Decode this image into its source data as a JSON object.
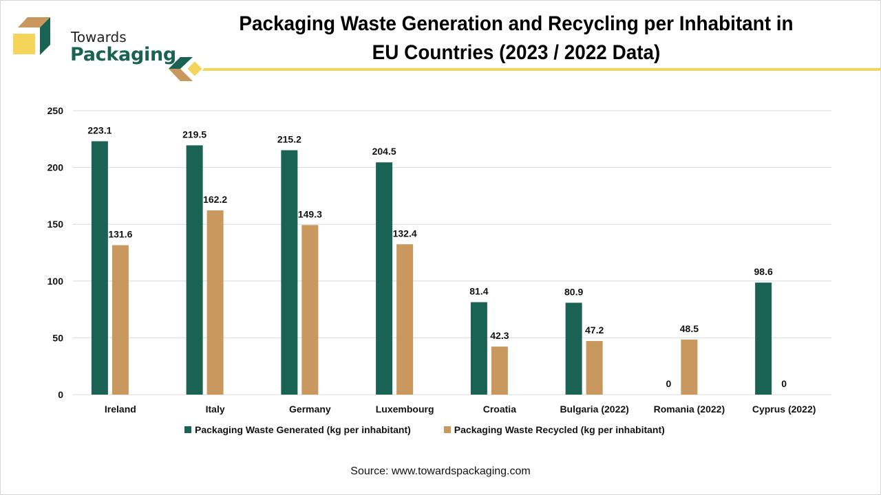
{
  "brand": {
    "line1": "Towards",
    "line2": "Packaging",
    "colors": {
      "green": "#1a6354",
      "tan": "#c8985f",
      "yellow": "#f5d45a"
    }
  },
  "source": "Source: www.towardspackaging.com",
  "chart_data": {
    "type": "bar",
    "title": "Packaging Waste Generation and Recycling per Inhabitant in EU Countries (2023 / 2022 Data)",
    "title_lines": [
      "Packaging Waste Generation and Recycling per Inhabitant in",
      "EU Countries (2023 / 2022 Data)"
    ],
    "xlabel": "",
    "ylabel": "",
    "ylim": [
      0,
      250
    ],
    "yticks": [
      0,
      50,
      100,
      150,
      200,
      250
    ],
    "grid": true,
    "legend_position": "bottom",
    "categories": [
      "Ireland",
      "Italy",
      "Germany",
      "Luxembourg",
      "Croatia",
      "Bulgaria (2022)",
      "Romania (2022)",
      "Cyprus (2022)"
    ],
    "series": [
      {
        "name": "Packaging Waste Generated (kg per inhabitant)",
        "color": "#1a6354",
        "values": [
          223.1,
          219.5,
          215.2,
          204.5,
          81.4,
          80.9,
          0,
          98.6
        ],
        "labels": [
          "223.1",
          "219.5",
          "215.2",
          "204.5",
          "81.4",
          "80.9",
          "0",
          "98.6"
        ]
      },
      {
        "name": "Packaging Waste Recycled (kg per inhabitant)",
        "color": "#c8985f",
        "values": [
          131.6,
          162.2,
          149.3,
          132.4,
          42.3,
          47.2,
          48.5,
          0
        ],
        "labels": [
          "131.6",
          "162.2",
          "149.3",
          "132.4",
          "42.3",
          "47.2",
          "48.5",
          "0"
        ]
      }
    ]
  }
}
